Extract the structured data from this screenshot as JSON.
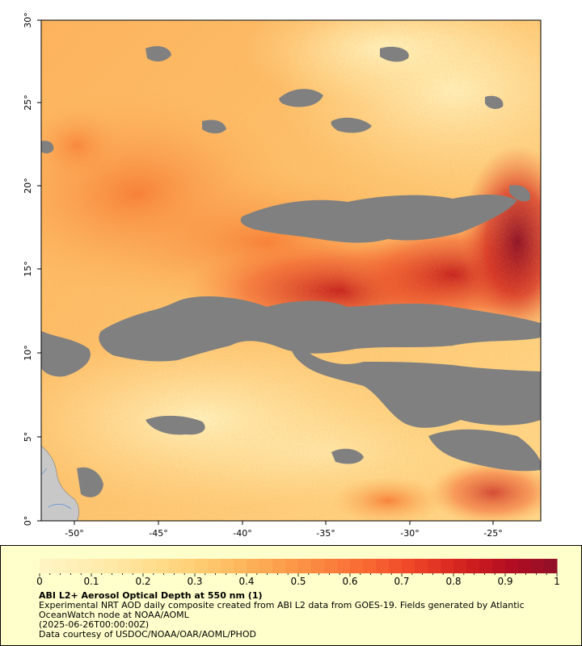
{
  "map": {
    "lon_labels": [
      "-50°",
      "-45°",
      "-40°",
      "-35°",
      "-30°",
      "-25°"
    ],
    "lat_labels": [
      "0°",
      "5°",
      "10°",
      "15°",
      "20°",
      "25°",
      "30°"
    ],
    "colors": {
      "nodata": "#808080",
      "land": "#c8c8c8",
      "low": "#fff0bb",
      "high": "#7a0025"
    }
  },
  "colorbar": {
    "labels": [
      "0",
      "0.1",
      "0.2",
      "0.3",
      "0.4",
      "0.5",
      "0.6",
      "0.7",
      "0.8",
      "0.9",
      "1"
    ],
    "colors": [
      "#fff4c2",
      "#ffefb5",
      "#ffe7a2",
      "#ffdd8c",
      "#ffd077",
      "#febf63",
      "#fdaa53",
      "#fc9446",
      "#fb7d3b",
      "#f86532",
      "#f04a29",
      "#e03022",
      "#ca1a1f",
      "#b00c22",
      "#951027"
    ]
  },
  "caption": {
    "title": "ABI L2+ Aerosol Optical Depth at 550 nm (1)",
    "line1": "Experimental NRT AOD daily composite created from ABI L2 data from GOES-19. Fields generated by Atlantic OceanWatch node at NOAA/AOML",
    "line2": "(2025-06-26T00:00:00Z)",
    "line3": "Data courtesy of USDOC/NOAA/OAR/AOML/PHOD"
  }
}
